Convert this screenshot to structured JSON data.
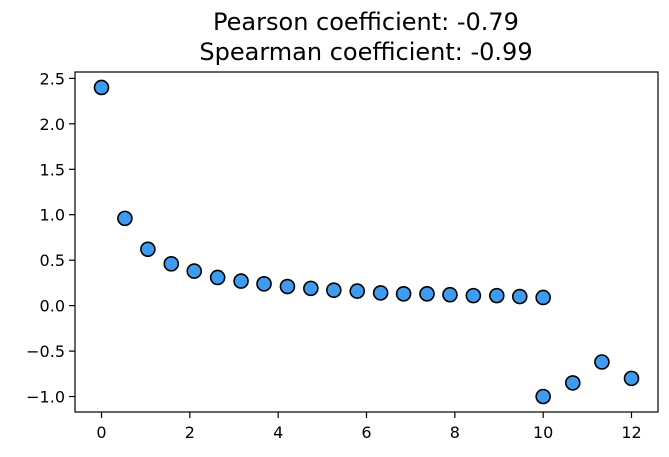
{
  "chart_data": {
    "type": "scatter",
    "title": "Pearson coefficient: -0.79\nSpearman coefficient: -0.99",
    "title_lines": [
      "Pearson coefficient: -0.79",
      "Spearman coefficient: -0.99"
    ],
    "xlabel": "",
    "ylabel": "",
    "xlim": [
      -0.6,
      12.6
    ],
    "ylim": [
      -1.17,
      2.57
    ],
    "xticks": [
      0,
      2,
      4,
      6,
      8,
      10,
      12
    ],
    "xtick_labels": [
      "0",
      "2",
      "4",
      "6",
      "8",
      "10",
      "12"
    ],
    "yticks": [
      -1.0,
      -0.5,
      0.0,
      0.5,
      1.0,
      1.5,
      2.0,
      2.5
    ],
    "ytick_labels": [
      "−1.0",
      "−0.5",
      "0.0",
      "0.5",
      "1.0",
      "1.5",
      "2.0",
      "2.5"
    ],
    "grid": false,
    "marker_color": "#3f9bf0",
    "marker_edge_color": "#000000",
    "points": [
      {
        "x": 0.0,
        "y": 2.4
      },
      {
        "x": 0.53,
        "y": 0.96
      },
      {
        "x": 1.05,
        "y": 0.62
      },
      {
        "x": 1.58,
        "y": 0.46
      },
      {
        "x": 2.1,
        "y": 0.38
      },
      {
        "x": 2.63,
        "y": 0.31
      },
      {
        "x": 3.16,
        "y": 0.27
      },
      {
        "x": 3.68,
        "y": 0.24
      },
      {
        "x": 4.21,
        "y": 0.21
      },
      {
        "x": 4.74,
        "y": 0.19
      },
      {
        "x": 5.26,
        "y": 0.17
      },
      {
        "x": 5.79,
        "y": 0.16
      },
      {
        "x": 6.32,
        "y": 0.14
      },
      {
        "x": 6.84,
        "y": 0.13
      },
      {
        "x": 7.37,
        "y": 0.13
      },
      {
        "x": 7.89,
        "y": 0.12
      },
      {
        "x": 8.42,
        "y": 0.11
      },
      {
        "x": 8.95,
        "y": 0.11
      },
      {
        "x": 9.47,
        "y": 0.1
      },
      {
        "x": 10.0,
        "y": 0.09
      },
      {
        "x": 10.0,
        "y": -1.0
      },
      {
        "x": 10.67,
        "y": -0.85
      },
      {
        "x": 11.33,
        "y": -0.62
      },
      {
        "x": 12.0,
        "y": -0.8
      }
    ]
  }
}
